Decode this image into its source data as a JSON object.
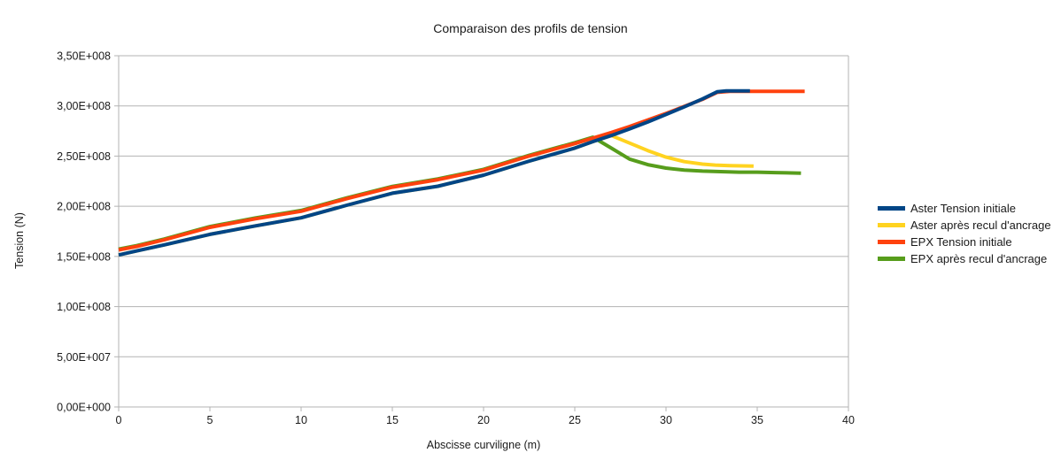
{
  "chart_data": {
    "type": "line",
    "title": "Comparaison des profils de tension",
    "xlabel": "Abscisse curviligne (m)",
    "ylabel": "Tension (N)",
    "xlim": [
      0,
      40
    ],
    "ylim": [
      0,
      350000000.0
    ],
    "grid": "horizontal",
    "legend_position": "right",
    "x_ticks": [
      0,
      5,
      10,
      15,
      20,
      25,
      30,
      35,
      40
    ],
    "x_tick_labels": [
      "0",
      "5",
      "10",
      "15",
      "20",
      "25",
      "30",
      "35",
      "40"
    ],
    "y_ticks": [
      0,
      50000000.0,
      100000000.0,
      150000000.0,
      200000000.0,
      250000000.0,
      300000000.0,
      350000000.0
    ],
    "y_tick_labels": [
      "0,00E+000",
      "5,00E+007",
      "1,00E+008",
      "1,50E+008",
      "2,00E+008",
      "2,50E+008",
      "3,00E+008",
      "3,50E+008"
    ],
    "colors": {
      "grid": "#b3b3b3",
      "axis": "#b3b3b3",
      "text": "#1a1a1a",
      "background": "#ffffff"
    },
    "series": [
      {
        "name": "Aster Tension initiale",
        "color": "#004586",
        "points": [
          [
            0,
            151500000.0
          ],
          [
            1,
            155500000.0
          ],
          [
            2.5,
            161500000.0
          ],
          [
            5,
            172000000.0
          ],
          [
            7.5,
            180500000.0
          ],
          [
            10,
            188500000.0
          ],
          [
            12.5,
            201000000.0
          ],
          [
            15,
            213000000.0
          ],
          [
            17.5,
            220000000.0
          ],
          [
            20,
            231000000.0
          ],
          [
            22.5,
            245000000.0
          ],
          [
            25,
            258000000.0
          ],
          [
            26,
            264500000.0
          ],
          [
            27,
            270500000.0
          ],
          [
            28,
            277000000.0
          ],
          [
            29,
            284000000.0
          ],
          [
            30,
            291500000.0
          ],
          [
            31,
            299000000.0
          ],
          [
            32,
            307000000.0
          ],
          [
            32.8,
            314000000.0
          ],
          [
            33.3,
            315000000.0
          ],
          [
            34.6,
            315000000.0
          ]
        ]
      },
      {
        "name": "Aster après recul d'ancrage",
        "color": "#FFD320",
        "points": [
          [
            0,
            151500000.0
          ],
          [
            1,
            155500000.0
          ],
          [
            2.5,
            161500000.0
          ],
          [
            5,
            172000000.0
          ],
          [
            7.5,
            180500000.0
          ],
          [
            10,
            188500000.0
          ],
          [
            12.5,
            201000000.0
          ],
          [
            15,
            213000000.0
          ],
          [
            17.5,
            220000000.0
          ],
          [
            20,
            231000000.0
          ],
          [
            22.5,
            245000000.0
          ],
          [
            25,
            258000000.0
          ],
          [
            26,
            264500000.0
          ],
          [
            27,
            270500000.0
          ],
          [
            28,
            263000000.0
          ],
          [
            29,
            255500000.0
          ],
          [
            30,
            249000000.0
          ],
          [
            31,
            244500000.0
          ],
          [
            32,
            242000000.0
          ],
          [
            32.7,
            241000000.0
          ],
          [
            33.5,
            240500000.0
          ],
          [
            34.8,
            240000000.0
          ]
        ]
      },
      {
        "name": "EPX Tension initiale",
        "color": "#FF420E",
        "points": [
          [
            0,
            156500000.0
          ],
          [
            1,
            160000000.0
          ],
          [
            2.5,
            166500000.0
          ],
          [
            5,
            179000000.0
          ],
          [
            7.5,
            187500000.0
          ],
          [
            10,
            195000000.0
          ],
          [
            12.5,
            207500000.0
          ],
          [
            15,
            219000000.0
          ],
          [
            17.5,
            226500000.0
          ],
          [
            20,
            236000000.0
          ],
          [
            22.5,
            250000000.0
          ],
          [
            25,
            262500000.0
          ],
          [
            26,
            268000000.0
          ],
          [
            27,
            273500000.0
          ],
          [
            28,
            279500000.0
          ],
          [
            29,
            286000000.0
          ],
          [
            30,
            292500000.0
          ],
          [
            31,
            299500000.0
          ],
          [
            32,
            306500000.0
          ],
          [
            32.8,
            313500000.0
          ],
          [
            33.5,
            314500000.0
          ],
          [
            37.6,
            314500000.0
          ]
        ]
      },
      {
        "name": "EPX après recul d'ancrage",
        "color": "#579D1C",
        "points": [
          [
            0,
            157300000.0
          ],
          [
            1,
            160800000.0
          ],
          [
            2.5,
            167300000.0
          ],
          [
            5,
            179800000.0
          ],
          [
            7.5,
            188300000.0
          ],
          [
            10,
            195800000.0
          ],
          [
            12.5,
            208300000.0
          ],
          [
            15,
            219800000.0
          ],
          [
            17.5,
            227300000.0
          ],
          [
            20,
            236800000.0
          ],
          [
            22.5,
            250800000.0
          ],
          [
            25,
            263300000.0
          ],
          [
            26,
            268800000.0
          ],
          [
            27,
            258000000.0
          ],
          [
            28,
            247000000.0
          ],
          [
            29,
            241500000.0
          ],
          [
            30,
            238000000.0
          ],
          [
            31,
            236000000.0
          ],
          [
            32,
            235000000.0
          ],
          [
            33,
            234500000.0
          ],
          [
            34,
            234000000.0
          ],
          [
            35,
            234000000.0
          ],
          [
            36,
            233500000.0
          ],
          [
            37.4,
            233000000.0
          ]
        ]
      }
    ],
    "draw_order": [
      1,
      3,
      2,
      0
    ]
  }
}
